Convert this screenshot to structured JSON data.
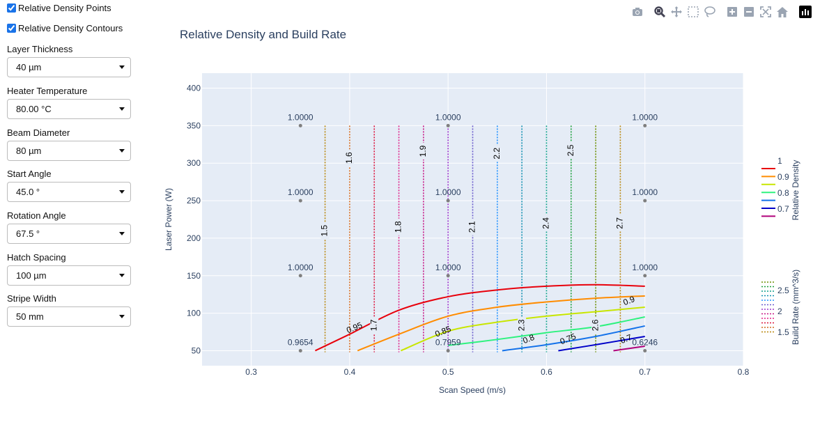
{
  "controls": {
    "points_toggle": {
      "label": "Relative Density Points",
      "checked": true
    },
    "contours_toggle": {
      "label": "Relative Density Contours",
      "checked": true
    },
    "selects": [
      {
        "label": "Layer Thickness",
        "value": "40 µm"
      },
      {
        "label": "Heater Temperature",
        "value": "80.00 °C"
      },
      {
        "label": "Beam Diameter",
        "value": "80 µm"
      },
      {
        "label": "Start Angle",
        "value": "45.0 °"
      },
      {
        "label": "Rotation Angle",
        "value": "67.5 °"
      },
      {
        "label": "Hatch Spacing",
        "value": "100 µm"
      },
      {
        "label": "Stripe Width",
        "value": "50 mm"
      }
    ]
  },
  "modebar": {
    "icons": [
      "camera-icon",
      "zoom-icon",
      "pan-icon",
      "box-select-icon",
      "lasso-icon",
      "zoom-in-icon",
      "zoom-out-icon",
      "autoscale-icon",
      "home-icon",
      "plotly-logo-icon"
    ]
  },
  "chart_data": {
    "type": "contour",
    "title": "Relative Density and Build Rate",
    "xlabel": "Scan Speed (m/s)",
    "ylabel": "Laser Power (W)",
    "xlim": [
      0.25,
      0.8
    ],
    "ylim": [
      30,
      420
    ],
    "x_ticks": [
      "0.3",
      "0.4",
      "0.5",
      "0.6",
      "0.7",
      "0.8"
    ],
    "x_tick_values": [
      0.3,
      0.4,
      0.5,
      0.6,
      0.7,
      0.8
    ],
    "y_ticks": [
      "50",
      "100",
      "150",
      "200",
      "250",
      "300",
      "350",
      "400"
    ],
    "y_tick_values": [
      50,
      100,
      150,
      200,
      250,
      300,
      350,
      400
    ],
    "grid": true,
    "points": [
      {
        "x": 0.35,
        "y": 350,
        "label": "1.0000"
      },
      {
        "x": 0.5,
        "y": 350,
        "label": "1.0000"
      },
      {
        "x": 0.7,
        "y": 350,
        "label": "1.0000"
      },
      {
        "x": 0.35,
        "y": 250,
        "label": "1.0000"
      },
      {
        "x": 0.5,
        "y": 250,
        "label": "1.0000"
      },
      {
        "x": 0.7,
        "y": 250,
        "label": "1.0000"
      },
      {
        "x": 0.35,
        "y": 150,
        "label": "1.0000"
      },
      {
        "x": 0.5,
        "y": 150,
        "label": "1.0000"
      },
      {
        "x": 0.7,
        "y": 150,
        "label": "1.0000"
      },
      {
        "x": 0.35,
        "y": 50,
        "label": "0.9654"
      },
      {
        "x": 0.5,
        "y": 50,
        "label": "0.7959"
      },
      {
        "x": 0.7,
        "y": 50,
        "label": "0.6246"
      }
    ],
    "density_contours": [
      {
        "level": 0.95,
        "color": "#e8000b",
        "label": "0.95",
        "label_at": [
          0.405,
          80
        ],
        "points": [
          [
            0.365,
            50
          ],
          [
            0.4,
            72
          ],
          [
            0.45,
            104
          ],
          [
            0.5,
            122
          ],
          [
            0.55,
            131
          ],
          [
            0.6,
            136
          ],
          [
            0.65,
            138
          ],
          [
            0.7,
            136
          ]
        ]
      },
      {
        "level": 0.9,
        "color": "#ff8c00",
        "label": "0.9",
        "label_at": [
          0.684,
          116
        ],
        "points": [
          [
            0.408,
            50
          ],
          [
            0.45,
            72
          ],
          [
            0.5,
            96
          ],
          [
            0.55,
            108
          ],
          [
            0.6,
            115
          ],
          [
            0.65,
            120
          ],
          [
            0.7,
            123
          ]
        ]
      },
      {
        "level": 0.85,
        "color": "#c8e600",
        "label": "0.85",
        "label_at": [
          0.495,
          75
        ],
        "points": [
          [
            0.452,
            50
          ],
          [
            0.5,
            76
          ],
          [
            0.55,
            88
          ],
          [
            0.6,
            96
          ],
          [
            0.65,
            102
          ],
          [
            0.7,
            108
          ]
        ]
      },
      {
        "level": 0.8,
        "color": "#2ef27f",
        "label": "0.8",
        "label_at": [
          0.582,
          65
        ],
        "points": [
          [
            0.5,
            57
          ],
          [
            0.55,
            65
          ],
          [
            0.6,
            74
          ],
          [
            0.65,
            82
          ],
          [
            0.7,
            95
          ]
        ]
      },
      {
        "level": 0.75,
        "color": "#1472ea",
        "label": "0.75",
        "label_at": [
          0.622,
          65
        ],
        "points": [
          [
            0.555,
            50
          ],
          [
            0.6,
            58
          ],
          [
            0.65,
            69
          ],
          [
            0.7,
            83
          ]
        ]
      },
      {
        "level": 0.7,
        "color": "#0000c8",
        "label": "0.7",
        "label_at": [
          0.681,
          65
        ],
        "points": [
          [
            0.612,
            50
          ],
          [
            0.65,
            58
          ],
          [
            0.7,
            69
          ]
        ]
      },
      {
        "level": 0.65,
        "color": "#b0007a",
        "label": "",
        "label_at": null,
        "points": [
          [
            0.668,
            50
          ],
          [
            0.7,
            56
          ]
        ]
      }
    ],
    "build_rate_contours": [
      {
        "x": 0.375,
        "label": "1.5",
        "color": "#b8860b"
      },
      {
        "x": 0.4,
        "label": "1.6",
        "color": "#d2691e"
      },
      {
        "x": 0.425,
        "label": "1.7",
        "color": "#dc143c"
      },
      {
        "x": 0.45,
        "label": "1.8",
        "color": "#e0218a"
      },
      {
        "x": 0.475,
        "label": "1.9",
        "color": "#c71585"
      },
      {
        "x": 0.5,
        "label": "2",
        "color": "#9932cc"
      },
      {
        "x": 0.525,
        "label": "2.1",
        "color": "#6a5acd"
      },
      {
        "x": 0.55,
        "label": "2.2",
        "color": "#1e90ff"
      },
      {
        "x": 0.575,
        "label": "2.3",
        "color": "#0e8fb0"
      },
      {
        "x": 0.6,
        "label": "2.4",
        "color": "#0b9e8a"
      },
      {
        "x": 0.625,
        "label": "2.5",
        "color": "#1a9e3a"
      },
      {
        "x": 0.65,
        "label": "2.6",
        "color": "#6b8e00"
      },
      {
        "x": 0.675,
        "label": "2.7",
        "color": "#b8860b"
      }
    ],
    "build_rate_label_positions": [
      {
        "x": 0.375,
        "y": 210
      },
      {
        "x": 0.4,
        "y": 307
      },
      {
        "x": 0.425,
        "y": 84
      },
      {
        "x": 0.45,
        "y": 215
      },
      {
        "x": 0.475,
        "y": 316
      },
      {
        "x": 0.525,
        "y": 215
      },
      {
        "x": 0.55,
        "y": 313
      },
      {
        "x": 0.575,
        "y": 84
      },
      {
        "x": 0.6,
        "y": 220
      },
      {
        "x": 0.625,
        "y": 317
      },
      {
        "x": 0.65,
        "y": 84
      },
      {
        "x": 0.675,
        "y": 220
      }
    ],
    "density_colorbar": {
      "title": "Relative Density",
      "ticks": [
        "1",
        "0.9",
        "0.8",
        "0.7"
      ],
      "colors": [
        "#e8000b",
        "#ff8c00",
        "#c8e600",
        "#2ef27f",
        "#1472ea",
        "#0000c8",
        "#b0007a"
      ]
    },
    "build_rate_colorbar": {
      "title": "Build Rate (mm^3/s)",
      "ticks": [
        "2.5",
        "2",
        "1.5"
      ],
      "colors": [
        "#6b8e00",
        "#1a9e3a",
        "#0b9e8a",
        "#0e8fb0",
        "#1e90ff",
        "#6a5acd",
        "#9932cc",
        "#c71585",
        "#e0218a",
        "#dc143c",
        "#d2691e",
        "#b8860b"
      ]
    }
  }
}
